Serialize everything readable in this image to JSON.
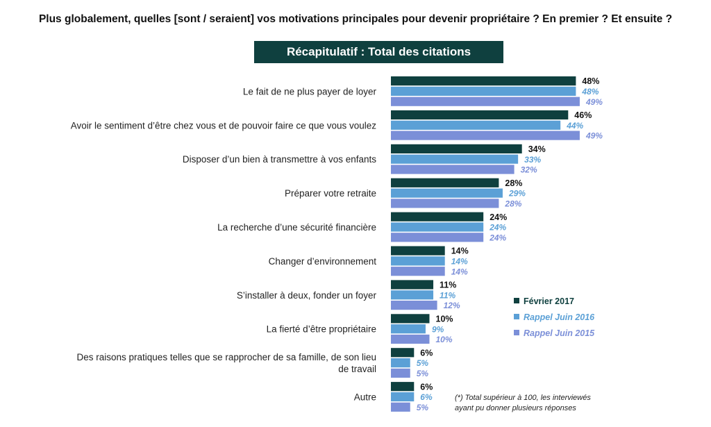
{
  "question": "Plus globalement, quelles [sont / seraient] vos motivations principales pour devenir propriétaire ? En premier ? Et ensuite ?",
  "banner": "Récapitulatif : Total des citations",
  "footnote": {
    "line1": "(*) Total supérieur à 100, les interviewés",
    "line2": "ayant pu donner plusieurs réponses"
  },
  "chart_data": {
    "type": "bar",
    "orientation": "horizontal",
    "unit": "%",
    "xlim": [
      0,
      60
    ],
    "grid": false,
    "legend_position": "right",
    "categories": [
      [
        "Le fait de ne plus payer de loyer"
      ],
      [
        "Avoir le sentiment d’être chez vous et de pouvoir faire ce que vous voulez"
      ],
      [
        "Disposer d’un bien à transmettre à vos enfants"
      ],
      [
        "Préparer votre retraite"
      ],
      [
        "La recherche d’une sécurité financière"
      ],
      [
        "Changer d’environnement"
      ],
      [
        "S’installer à deux, fonder un foyer"
      ],
      [
        "La fierté d’être propriétaire"
      ],
      [
        "Des raisons pratiques telles que se rapprocher de sa famille, de son lieu",
        "de travail"
      ],
      [
        "Autre"
      ]
    ],
    "series": [
      {
        "name": "Février 2017",
        "color": "#0f403f",
        "values": [
          48,
          46,
          34,
          28,
          24,
          14,
          11,
          10,
          6,
          6
        ]
      },
      {
        "name": "Rappel Juin  2016",
        "color": "#5ba0d6",
        "values": [
          48,
          44,
          33,
          29,
          24,
          14,
          11,
          9,
          5,
          6
        ]
      },
      {
        "name": "Rappel Juin 2015",
        "color": "#7b8fd8",
        "values": [
          49,
          49,
          32,
          28,
          24,
          14,
          12,
          10,
          5,
          5
        ]
      }
    ]
  }
}
